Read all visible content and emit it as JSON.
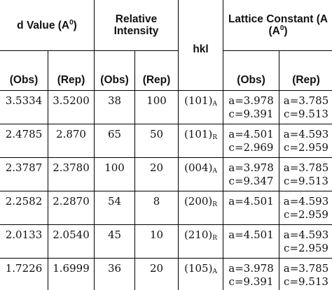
{
  "headers": {
    "d_value_main": "d Value (A",
    "d_value_sup": "0",
    "d_value_close": ")",
    "relative_intensity": "Relative Intensity",
    "hkl": "hkl",
    "lattice_main": "Lattice Constant (A",
    "lattice_sup": "0",
    "lattice_close": ")",
    "obs": "(Obs)",
    "rep": "(Rep)"
  },
  "rows": [
    {
      "d_obs": "3.5334",
      "d_rep": "3.5200",
      "i_obs": "38",
      "i_rep": "100",
      "hkl": "(101)",
      "phase": "A",
      "lc_obs": [
        "a=3.978",
        "c=9.391"
      ],
      "lc_rep": [
        "a=3.785",
        "c=9.513"
      ]
    },
    {
      "d_obs": "2.4785",
      "d_rep": "2.870",
      "i_obs": "65",
      "i_rep": "50",
      "hkl": "(101)",
      "phase": "R",
      "lc_obs": [
        "a=4.501",
        "c=2.969"
      ],
      "lc_rep": [
        "a=4.593",
        "c=2.959"
      ]
    },
    {
      "d_obs": "2.3787",
      "d_rep": "2.3780",
      "i_obs": "100",
      "i_rep": "20",
      "hkl": "(004)",
      "phase": "A",
      "lc_obs": [
        "a=3.978",
        "c=9.347"
      ],
      "lc_rep": [
        "a=3.785",
        "c=9.513"
      ]
    },
    {
      "d_obs": "2.2582",
      "d_rep": "2.2870",
      "i_obs": "54",
      "i_rep": "8",
      "hkl": "(200)",
      "phase": "R",
      "lc_obs": [
        "a=4.501"
      ],
      "lc_rep": [
        "a=4.593",
        "c=2.959"
      ]
    },
    {
      "d_obs": "2.0133",
      "d_rep": "2.0540",
      "i_obs": "45",
      "i_rep": "10",
      "hkl": "(210)",
      "phase": "R",
      "lc_obs": [
        "a=4.501"
      ],
      "lc_rep": [
        "a=4.593",
        "c=2.959"
      ]
    },
    {
      "d_obs": "1.7226",
      "d_rep": "1.6999",
      "i_obs": "36",
      "i_rep": "20",
      "hkl": "(105)",
      "phase": "A",
      "lc_obs": [
        "a=3.978",
        "c=9.391"
      ],
      "lc_rep": [
        "a=3.785",
        "c=9.513"
      ]
    }
  ]
}
